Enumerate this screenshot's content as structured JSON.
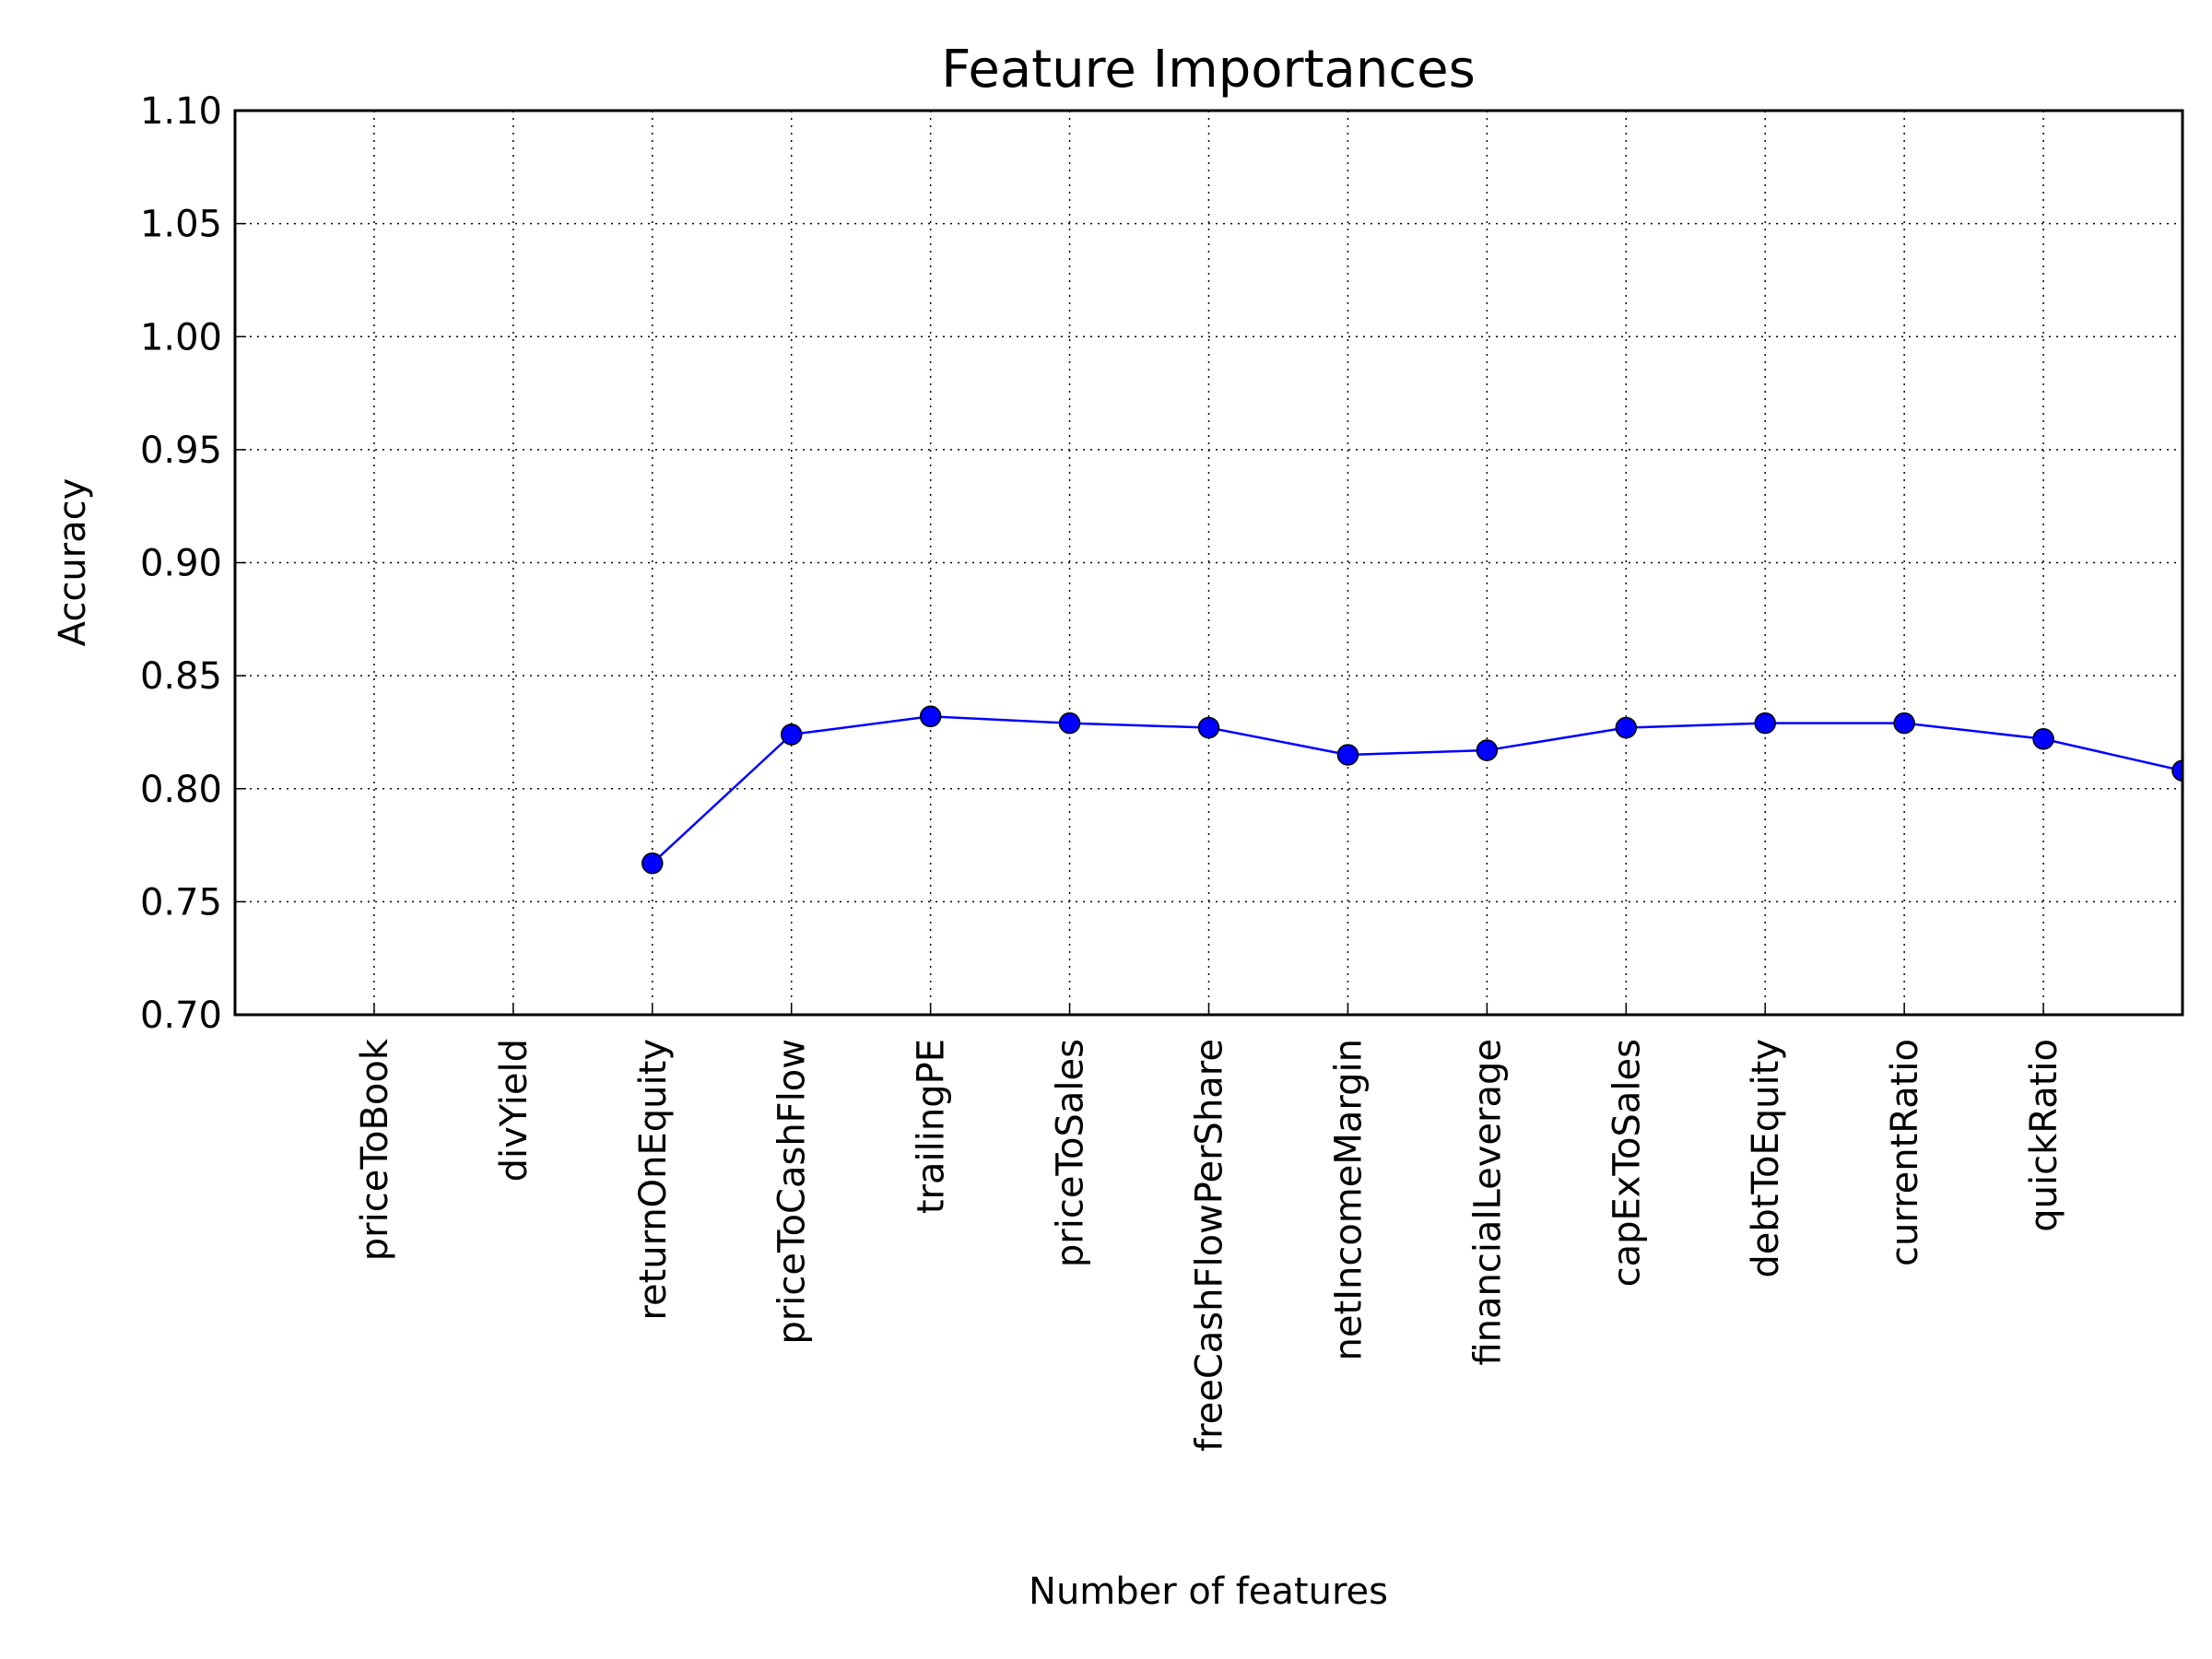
{
  "chart_data": {
    "type": "line",
    "title": "Feature Importances",
    "x_label": "Number of features",
    "y_label": "Accuracy",
    "xlim": [
      0,
      14
    ],
    "xticks": [
      {
        "value": 1,
        "label": "priceToBook"
      },
      {
        "value": 2,
        "label": "divYield"
      },
      {
        "value": 3,
        "label": "returnOnEquity"
      },
      {
        "value": 4,
        "label": "priceToCashFlow"
      },
      {
        "value": 5,
        "label": "trailingPE"
      },
      {
        "value": 6,
        "label": "priceToSales"
      },
      {
        "value": 7,
        "label": "freeCashFlowPerShare"
      },
      {
        "value": 8,
        "label": "netIncomeMargin"
      },
      {
        "value": 9,
        "label": "financialLeverage"
      },
      {
        "value": 10,
        "label": "capExToSales"
      },
      {
        "value": 11,
        "label": "debtToEquity"
      },
      {
        "value": 12,
        "label": "currentRatio"
      },
      {
        "value": 13,
        "label": "quickRatio"
      }
    ],
    "ylim": [
      0.7,
      1.1
    ],
    "yticks": [
      {
        "value": 0.7,
        "label": "0.70"
      },
      {
        "value": 0.75,
        "label": "0.75"
      },
      {
        "value": 0.8,
        "label": "0.80"
      },
      {
        "value": 0.85,
        "label": "0.85"
      },
      {
        "value": 0.9,
        "label": "0.90"
      },
      {
        "value": 0.95,
        "label": "0.95"
      },
      {
        "value": 1.0,
        "label": "1.00"
      },
      {
        "value": 1.05,
        "label": "1.05"
      },
      {
        "value": 1.1,
        "label": "1.10"
      }
    ],
    "grid": true,
    "series": [
      {
        "color": "#0000ff",
        "x": [
          3,
          4,
          5,
          6,
          7,
          8,
          9,
          10,
          11,
          12,
          13,
          14
        ],
        "values": [
          0.767,
          0.824,
          0.832,
          0.829,
          0.827,
          0.815,
          0.817,
          0.827,
          0.829,
          0.829,
          0.822,
          0.808
        ]
      }
    ]
  }
}
